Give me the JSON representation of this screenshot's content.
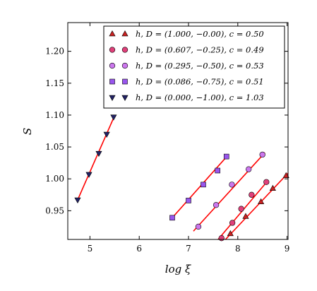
{
  "chart_data": {
    "type": "scatter",
    "xlabel": "log ξ",
    "ylabel": "S",
    "xlim": [
      4.55,
      9.02
    ],
    "ylim": [
      0.905,
      1.245
    ],
    "xticks": [
      "5",
      "6",
      "7",
      "8",
      "9"
    ],
    "yticks": [
      "0.95",
      "1.00",
      "1.05",
      "1.10",
      "1.15",
      "1.20"
    ],
    "xtick_values": [
      5,
      6,
      7,
      8,
      9
    ],
    "ytick_values": [
      0.95,
      1.0,
      1.05,
      1.1,
      1.15,
      1.2
    ],
    "grid": false,
    "legend_position": "top-right",
    "fit_line_color": "#ff0000",
    "series": [
      {
        "name": "h, D = (1.000, −0.00), c = 0.50",
        "marker": "triangle-up",
        "color": "#cc2222",
        "x": [
          7.85,
          8.16,
          8.47,
          8.71,
          8.98
        ],
        "y": [
          0.914,
          0.941,
          0.964,
          0.985,
          1.005
        ],
        "fit": [
          [
            7.75,
            0.905
          ],
          [
            9.02,
            1.009
          ]
        ]
      },
      {
        "name": "h, D = (0.607, −0.25), c = 0.49",
        "marker": "circle",
        "color": "#e0407a",
        "x": [
          7.67,
          7.89,
          8.07,
          8.28,
          8.58
        ],
        "y": [
          0.907,
          0.931,
          0.953,
          0.975,
          0.995
        ],
        "fit": [
          [
            7.6,
            0.905
          ],
          [
            8.62,
            0.998
          ]
        ]
      },
      {
        "name": "h, D = (0.295, −0.50), c = 0.53",
        "marker": "circle",
        "color": "#cc77ee",
        "x": [
          7.2,
          7.56,
          7.88,
          8.22,
          8.5
        ],
        "y": [
          0.925,
          0.959,
          0.991,
          1.015,
          1.038
        ],
        "fit": [
          [
            7.1,
            0.918
          ],
          [
            8.55,
            1.041
          ]
        ]
      },
      {
        "name": "h, D = (0.086, −0.75), c = 0.51",
        "marker": "square",
        "color": "#9955ee",
        "x": [
          6.67,
          7.0,
          7.3,
          7.59,
          7.77
        ],
        "y": [
          0.939,
          0.966,
          0.991,
          1.013,
          1.035
        ],
        "fit": [
          [
            6.67,
            0.939
          ],
          [
            7.8,
            1.037
          ]
        ]
      },
      {
        "name": "h, D = (0.000, −1.00), c = 1.03",
        "marker": "triangle-down",
        "color": "#222266",
        "x": [
          4.75,
          4.98,
          5.18,
          5.34,
          5.48
        ],
        "y": [
          0.967,
          1.007,
          1.04,
          1.07,
          1.097
        ],
        "fit": [
          [
            4.75,
            0.967
          ],
          [
            5.5,
            1.099
          ]
        ]
      }
    ]
  }
}
